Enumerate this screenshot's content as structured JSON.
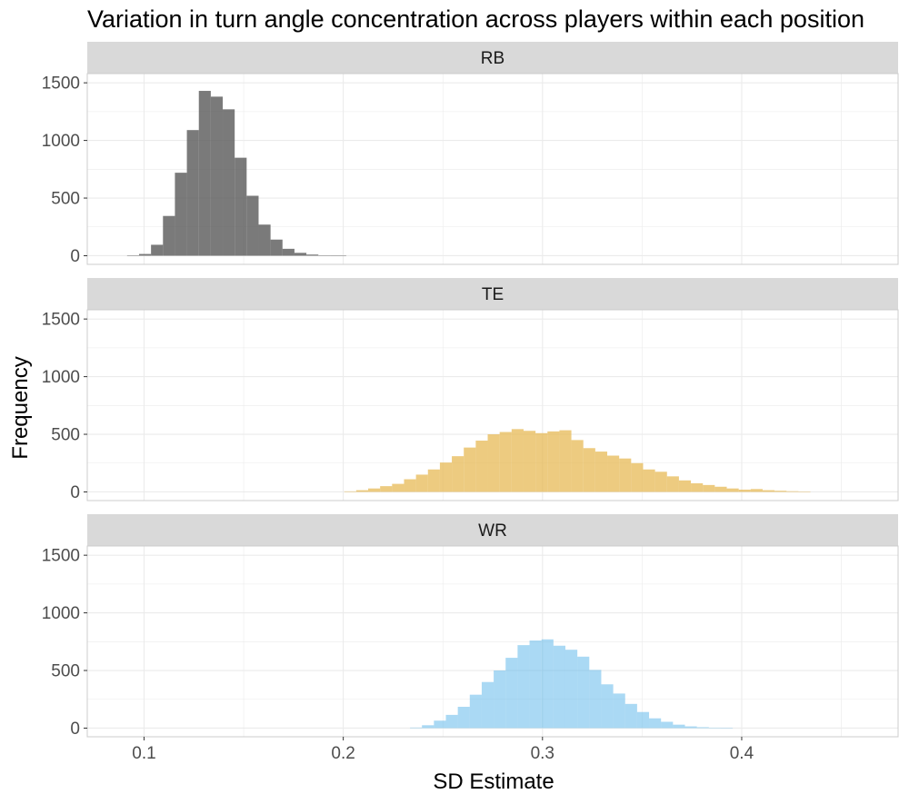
{
  "chart_data": {
    "type": "bar",
    "subtype": "faceted-histogram",
    "title": "Variation in turn angle concentration across players within each position",
    "xlabel": "SD Estimate",
    "ylabel": "Frequency",
    "xlim": [
      0.0715,
      0.4785
    ],
    "ylim": [
      -75,
      1580
    ],
    "x_ticks": [
      0.1,
      0.2,
      0.3,
      0.4
    ],
    "y_ticks": [
      0,
      500,
      1000,
      1500
    ],
    "grid": true,
    "legend": "none",
    "panel_background": "#ffffff",
    "grid_color": "#ebebeb",
    "strip_fill": "#d9d9d9",
    "facets": [
      {
        "label": "RB",
        "color": "#595959",
        "opacity": 0.8,
        "bins": [
          {
            "x0": 0.0915,
            "x1": 0.0975,
            "y": 3
          },
          {
            "x0": 0.0975,
            "x1": 0.1035,
            "y": 15
          },
          {
            "x0": 0.1035,
            "x1": 0.1095,
            "y": 95
          },
          {
            "x0": 0.1095,
            "x1": 0.1155,
            "y": 345
          },
          {
            "x0": 0.1155,
            "x1": 0.1215,
            "y": 720
          },
          {
            "x0": 0.1215,
            "x1": 0.1275,
            "y": 1090
          },
          {
            "x0": 0.1275,
            "x1": 0.1335,
            "y": 1430
          },
          {
            "x0": 0.1335,
            "x1": 0.1395,
            "y": 1380
          },
          {
            "x0": 0.1395,
            "x1": 0.1455,
            "y": 1270
          },
          {
            "x0": 0.1455,
            "x1": 0.1515,
            "y": 850
          },
          {
            "x0": 0.1515,
            "x1": 0.1575,
            "y": 520
          },
          {
            "x0": 0.1575,
            "x1": 0.1635,
            "y": 270
          },
          {
            "x0": 0.1635,
            "x1": 0.1695,
            "y": 140
          },
          {
            "x0": 0.1695,
            "x1": 0.1755,
            "y": 60
          },
          {
            "x0": 0.1755,
            "x1": 0.1815,
            "y": 25
          },
          {
            "x0": 0.1815,
            "x1": 0.1875,
            "y": 10
          },
          {
            "x0": 0.1875,
            "x1": 0.1935,
            "y": 4
          },
          {
            "x0": 0.1935,
            "x1": 0.1995,
            "y": 2
          },
          {
            "x0": 0.1995,
            "x1": 0.2015,
            "y": 1
          }
        ]
      },
      {
        "label": "TE",
        "color": "#e6b54a",
        "opacity": 0.7,
        "bins": [
          {
            "x0": 0.2005,
            "x1": 0.2065,
            "y": 5
          },
          {
            "x0": 0.2065,
            "x1": 0.2125,
            "y": 15
          },
          {
            "x0": 0.2125,
            "x1": 0.2185,
            "y": 30
          },
          {
            "x0": 0.2185,
            "x1": 0.2245,
            "y": 50
          },
          {
            "x0": 0.2245,
            "x1": 0.2305,
            "y": 70
          },
          {
            "x0": 0.2305,
            "x1": 0.2365,
            "y": 110
          },
          {
            "x0": 0.2365,
            "x1": 0.2425,
            "y": 150
          },
          {
            "x0": 0.2425,
            "x1": 0.2485,
            "y": 195
          },
          {
            "x0": 0.2485,
            "x1": 0.2545,
            "y": 255
          },
          {
            "x0": 0.2545,
            "x1": 0.2605,
            "y": 310
          },
          {
            "x0": 0.2605,
            "x1": 0.2665,
            "y": 385
          },
          {
            "x0": 0.2665,
            "x1": 0.2725,
            "y": 445
          },
          {
            "x0": 0.2725,
            "x1": 0.2785,
            "y": 500
          },
          {
            "x0": 0.2785,
            "x1": 0.2845,
            "y": 520
          },
          {
            "x0": 0.2845,
            "x1": 0.2905,
            "y": 545
          },
          {
            "x0": 0.2905,
            "x1": 0.2965,
            "y": 530
          },
          {
            "x0": 0.2965,
            "x1": 0.3025,
            "y": 510
          },
          {
            "x0": 0.3025,
            "x1": 0.3085,
            "y": 525
          },
          {
            "x0": 0.3085,
            "x1": 0.3145,
            "y": 535
          },
          {
            "x0": 0.3145,
            "x1": 0.3205,
            "y": 450
          },
          {
            "x0": 0.3205,
            "x1": 0.3265,
            "y": 380
          },
          {
            "x0": 0.3265,
            "x1": 0.3325,
            "y": 350
          },
          {
            "x0": 0.3325,
            "x1": 0.3385,
            "y": 315
          },
          {
            "x0": 0.3385,
            "x1": 0.3445,
            "y": 290
          },
          {
            "x0": 0.3445,
            "x1": 0.3505,
            "y": 250
          },
          {
            "x0": 0.3505,
            "x1": 0.3565,
            "y": 195
          },
          {
            "x0": 0.3565,
            "x1": 0.3625,
            "y": 175
          },
          {
            "x0": 0.3625,
            "x1": 0.3685,
            "y": 135
          },
          {
            "x0": 0.3685,
            "x1": 0.3745,
            "y": 100
          },
          {
            "x0": 0.3745,
            "x1": 0.3805,
            "y": 75
          },
          {
            "x0": 0.3805,
            "x1": 0.3865,
            "y": 60
          },
          {
            "x0": 0.3865,
            "x1": 0.3925,
            "y": 45
          },
          {
            "x0": 0.3925,
            "x1": 0.3985,
            "y": 30
          },
          {
            "x0": 0.3985,
            "x1": 0.4045,
            "y": 20
          },
          {
            "x0": 0.4045,
            "x1": 0.4105,
            "y": 25
          },
          {
            "x0": 0.4105,
            "x1": 0.4165,
            "y": 15
          },
          {
            "x0": 0.4165,
            "x1": 0.4225,
            "y": 10
          },
          {
            "x0": 0.4225,
            "x1": 0.4285,
            "y": 6
          },
          {
            "x0": 0.4285,
            "x1": 0.4345,
            "y": 4
          }
        ]
      },
      {
        "label": "WR",
        "color": "#56b4e9",
        "opacity": 0.5,
        "bins": [
          {
            "x0": 0.2335,
            "x1": 0.2395,
            "y": 5
          },
          {
            "x0": 0.2395,
            "x1": 0.2455,
            "y": 25
          },
          {
            "x0": 0.2455,
            "x1": 0.2515,
            "y": 65
          },
          {
            "x0": 0.2515,
            "x1": 0.2575,
            "y": 115
          },
          {
            "x0": 0.2575,
            "x1": 0.2635,
            "y": 185
          },
          {
            "x0": 0.2635,
            "x1": 0.2695,
            "y": 290
          },
          {
            "x0": 0.2695,
            "x1": 0.2755,
            "y": 400
          },
          {
            "x0": 0.2755,
            "x1": 0.2815,
            "y": 500
          },
          {
            "x0": 0.2815,
            "x1": 0.2875,
            "y": 610
          },
          {
            "x0": 0.2875,
            "x1": 0.2935,
            "y": 720
          },
          {
            "x0": 0.2935,
            "x1": 0.2995,
            "y": 760
          },
          {
            "x0": 0.2995,
            "x1": 0.3055,
            "y": 770
          },
          {
            "x0": 0.3055,
            "x1": 0.3115,
            "y": 715
          },
          {
            "x0": 0.3115,
            "x1": 0.3175,
            "y": 680
          },
          {
            "x0": 0.3175,
            "x1": 0.3235,
            "y": 620
          },
          {
            "x0": 0.3235,
            "x1": 0.3295,
            "y": 505
          },
          {
            "x0": 0.3295,
            "x1": 0.3355,
            "y": 380
          },
          {
            "x0": 0.3355,
            "x1": 0.3415,
            "y": 300
          },
          {
            "x0": 0.3415,
            "x1": 0.3475,
            "y": 210
          },
          {
            "x0": 0.3475,
            "x1": 0.3535,
            "y": 140
          },
          {
            "x0": 0.3535,
            "x1": 0.3595,
            "y": 85
          },
          {
            "x0": 0.3595,
            "x1": 0.3655,
            "y": 55
          },
          {
            "x0": 0.3655,
            "x1": 0.3715,
            "y": 30
          },
          {
            "x0": 0.3715,
            "x1": 0.3775,
            "y": 15
          },
          {
            "x0": 0.3775,
            "x1": 0.3835,
            "y": 8
          },
          {
            "x0": 0.3835,
            "x1": 0.3895,
            "y": 4
          },
          {
            "x0": 0.3895,
            "x1": 0.3955,
            "y": 2
          }
        ]
      }
    ]
  }
}
